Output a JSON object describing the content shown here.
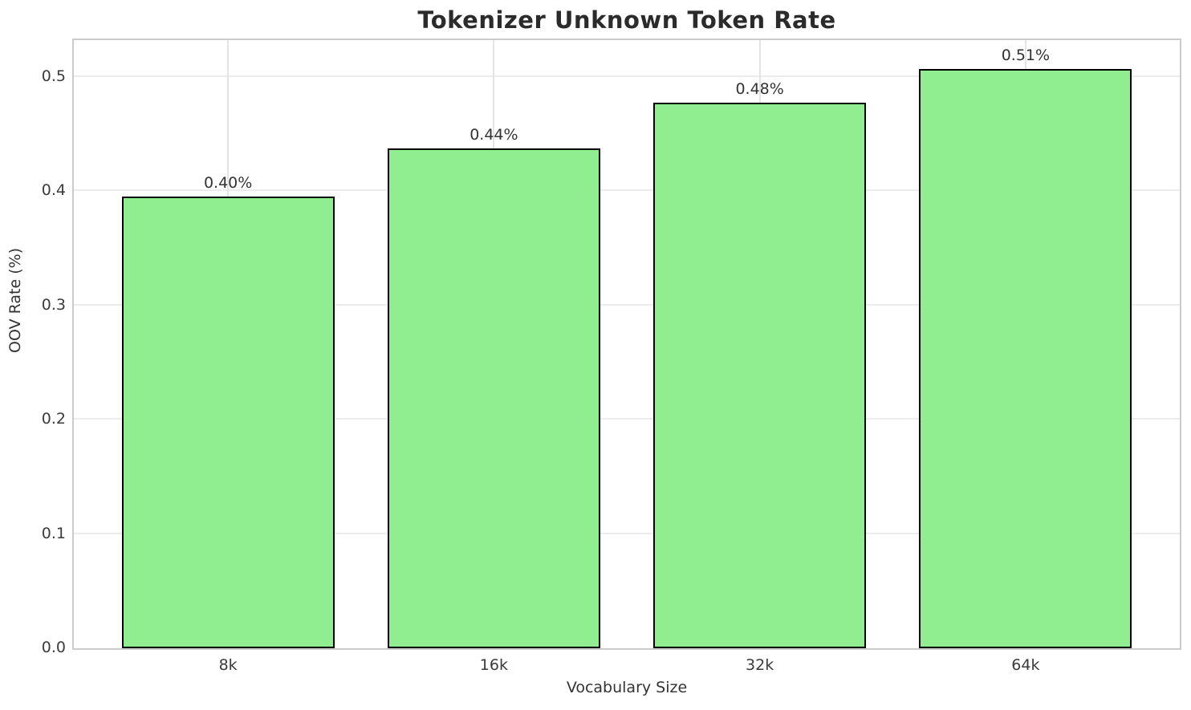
{
  "chart_data": {
    "type": "bar",
    "title": "Tokenizer Unknown Token Rate",
    "xlabel": "Vocabulary Size",
    "ylabel": "OOV Rate (%)",
    "categories": [
      "8k",
      "16k",
      "32k",
      "64k"
    ],
    "values": [
      0.395,
      0.437,
      0.477,
      0.507
    ],
    "bar_labels": [
      "0.40%",
      "0.44%",
      "0.48%",
      "0.51%"
    ],
    "yticks": [
      0.0,
      0.1,
      0.2,
      0.3,
      0.4,
      0.5
    ],
    "ytick_labels": [
      "0.0",
      "0.1",
      "0.2",
      "0.3",
      "0.4",
      "0.5"
    ],
    "ylim": [
      0,
      0.532
    ],
    "grid": true,
    "legend": null,
    "colors": {
      "bar_fill": "#90EE90",
      "bar_edge": "#000000",
      "grid_horizontal": "#ececec",
      "grid_vertical": "#e4e4e4",
      "frame": "#cccccc",
      "tick_text": "#3b3b3b",
      "title_text": "#2b2b2b",
      "background": "#ffffff"
    }
  }
}
